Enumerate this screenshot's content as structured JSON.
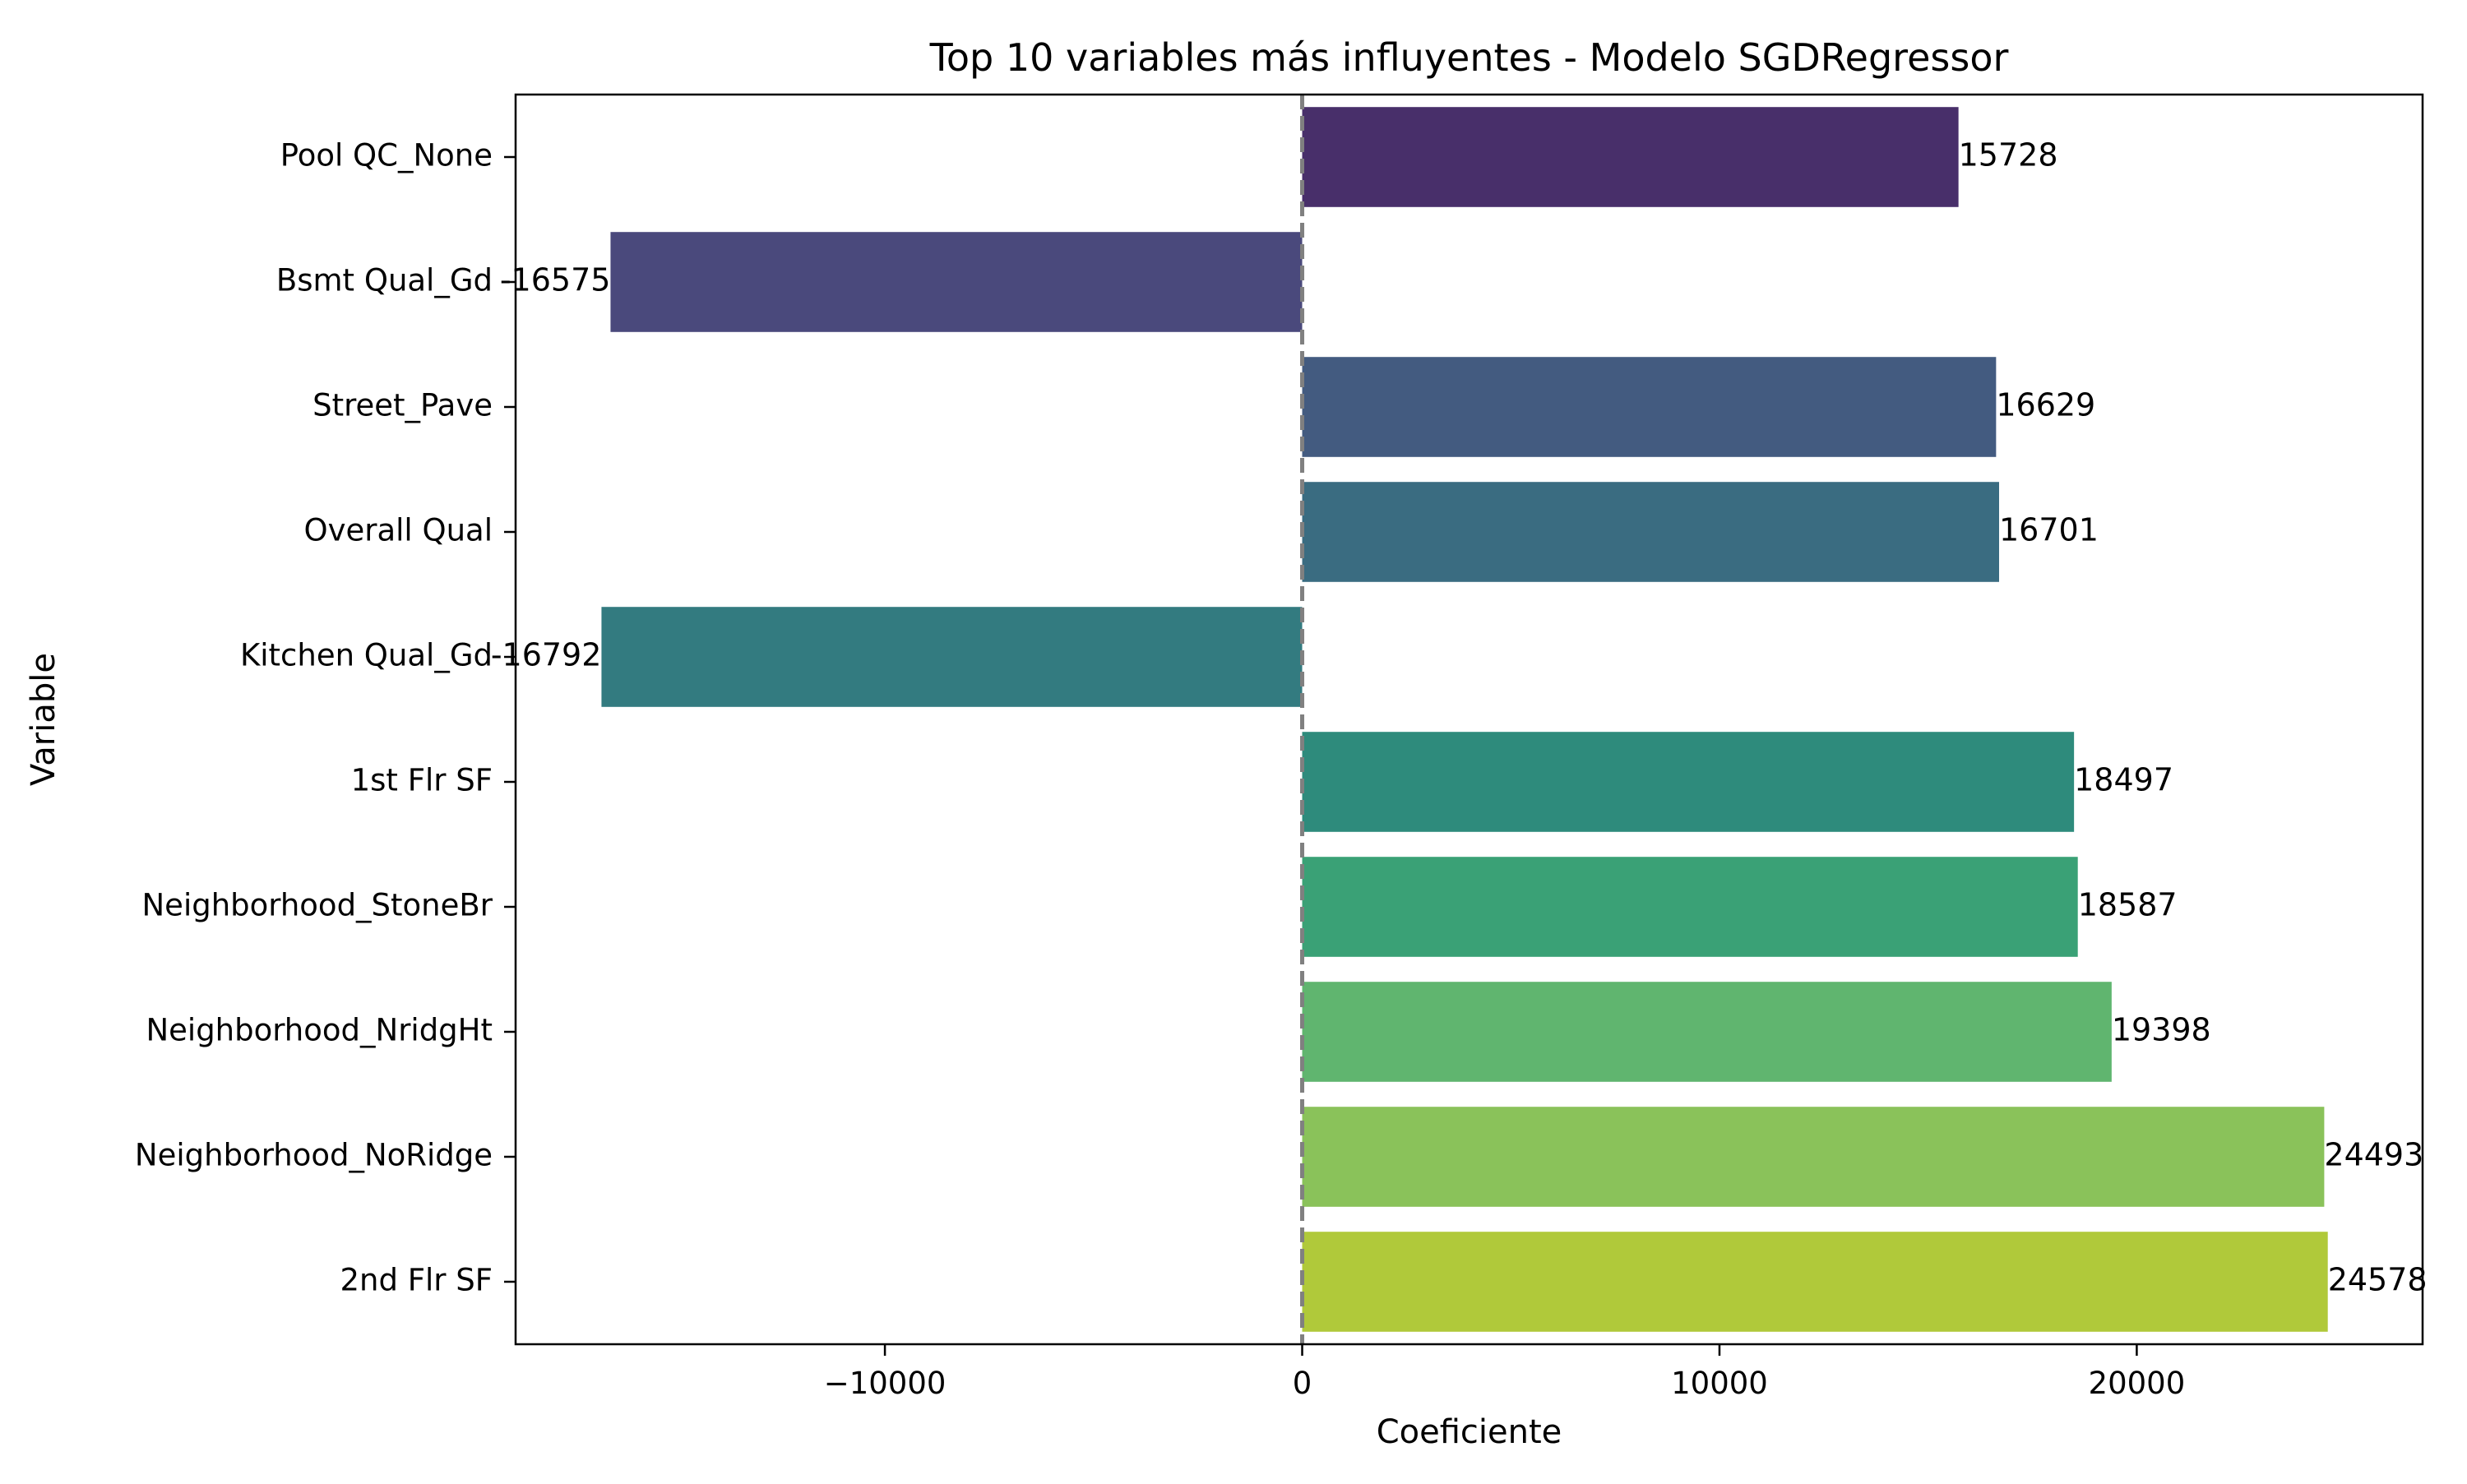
{
  "chart_data": {
    "type": "bar",
    "orientation": "horizontal",
    "title": "Top 10 variables más influyentes - Modelo SGDRegressor",
    "xlabel": "Coeficiente",
    "ylabel": "Variable",
    "categories": [
      "Pool QC_None",
      "Bsmt Qual_Gd",
      "Street_Pave",
      "Overall Qual",
      "Kitchen Qual_Gd",
      "1st Flr SF",
      "Neighborhood_StoneBr",
      "Neighborhood_NridgHt",
      "Neighborhood_NoRidge",
      "2nd Flr SF"
    ],
    "values": [
      15728,
      -16575,
      16629,
      16701,
      -16792,
      18497,
      18587,
      19398,
      24493,
      24578
    ],
    "data_labels": [
      "15728",
      "-16575",
      "16629",
      "16701",
      "-16792",
      "18497",
      "18587",
      "19398",
      "24493",
      "24578"
    ],
    "xlim": [
      -18850,
      26850
    ],
    "xticks": [
      -10000,
      0,
      10000,
      20000
    ],
    "xtick_labels": [
      "−10000",
      "0",
      "10000",
      "20000"
    ],
    "reference_line": {
      "x": 0,
      "style": "dashed",
      "color": "#808080"
    },
    "colors": [
      "#482f6a",
      "#4a497c",
      "#435b80",
      "#3a6c81",
      "#337b80",
      "#2e8b7c",
      "#3aa176",
      "#60b56f",
      "#8ac25a",
      "#b0c93a"
    ],
    "grid": false,
    "legend": "none"
  }
}
